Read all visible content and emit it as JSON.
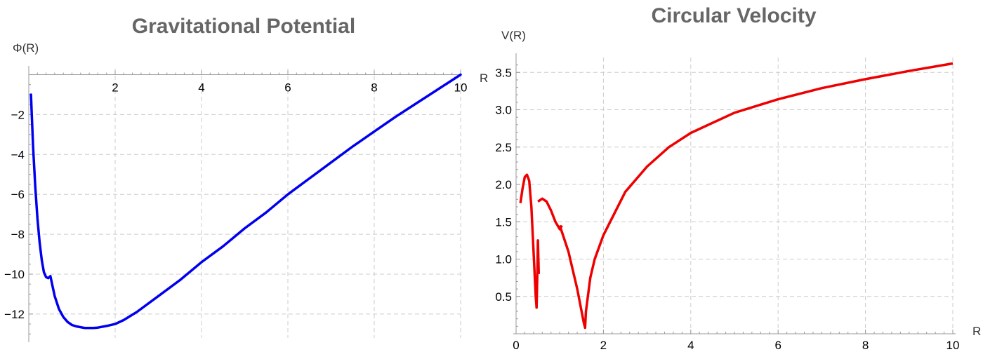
{
  "chart_data": [
    {
      "type": "line",
      "title": "Gravitational Potential",
      "xlabel": "",
      "ylabel": "Φ(R)",
      "xlim": [
        0,
        10
      ],
      "ylim": [
        -13.2,
        0.3
      ],
      "x_ticks": [
        2,
        4,
        6,
        8,
        10
      ],
      "y_ticks": [
        -2,
        -4,
        -6,
        -8,
        -10,
        -12
      ],
      "grid": true,
      "color": "#0000ee",
      "series": [
        {
          "x": [
            0.05,
            0.1,
            0.15,
            0.2,
            0.25,
            0.3,
            0.35,
            0.4,
            0.45,
            0.5,
            0.55,
            0.6,
            0.7,
            0.8,
            0.9,
            1.0,
            1.1,
            1.2,
            1.3,
            1.4,
            1.5,
            1.6,
            1.8,
            2.0,
            2.2,
            2.5,
            3.0,
            3.5,
            4.0,
            4.5,
            5.0,
            5.5,
            6.0,
            6.5,
            7.0,
            7.5,
            8.0,
            8.5,
            9.0,
            9.5,
            10.0
          ],
          "y": [
            -1.0,
            -3.6,
            -5.6,
            -7.2,
            -8.4,
            -9.3,
            -9.9,
            -10.15,
            -10.2,
            -10.1,
            -10.6,
            -11.1,
            -11.75,
            -12.15,
            -12.4,
            -12.55,
            -12.62,
            -12.66,
            -12.7,
            -12.7,
            -12.7,
            -12.68,
            -12.6,
            -12.5,
            -12.3,
            -11.9,
            -11.1,
            -10.3,
            -9.4,
            -8.6,
            -7.7,
            -6.9,
            -6.0,
            -5.2,
            -4.4,
            -3.6,
            -2.85,
            -2.1,
            -1.4,
            -0.7,
            0.0
          ]
        }
      ]
    },
    {
      "type": "line",
      "title": "Circular Velocity",
      "xlabel": "R",
      "ylabel": "V(R)",
      "extra_label": "R",
      "xlim": [
        0,
        10
      ],
      "ylim": [
        0,
        3.7
      ],
      "x_ticks": [
        0,
        2,
        4,
        6,
        8,
        10
      ],
      "y_ticks": [
        0.5,
        1.0,
        1.5,
        2.0,
        2.5,
        3.0,
        3.5
      ],
      "grid": true,
      "color": "#ee0000",
      "series": [
        {
          "x": [
            0.1,
            0.15,
            0.2,
            0.25,
            0.3,
            0.35,
            0.4,
            0.45,
            0.47,
            0.49,
            0.5,
            0.52
          ],
          "y": [
            1.75,
            1.95,
            2.1,
            2.13,
            2.05,
            1.7,
            1.1,
            0.5,
            0.35,
            0.9,
            1.25,
            0.8
          ]
        },
        {
          "x": [
            0.5,
            0.6,
            0.7,
            0.8,
            0.9,
            1.0,
            1.05
          ],
          "y": [
            1.77,
            1.81,
            1.77,
            1.65,
            1.5,
            1.4,
            1.45
          ]
        },
        {
          "x": [
            1.0,
            1.2,
            1.4,
            1.5,
            1.55,
            1.58,
            1.6,
            1.7,
            1.8,
            2.0,
            2.5,
            3.0,
            3.5,
            4.0,
            5.0,
            6.0,
            7.0,
            8.0,
            9.0,
            10.0
          ],
          "y": [
            1.45,
            1.1,
            0.6,
            0.3,
            0.15,
            0.08,
            0.3,
            0.75,
            1.0,
            1.32,
            1.9,
            2.24,
            2.5,
            2.69,
            2.96,
            3.14,
            3.29,
            3.41,
            3.52,
            3.62
          ]
        }
      ]
    }
  ]
}
